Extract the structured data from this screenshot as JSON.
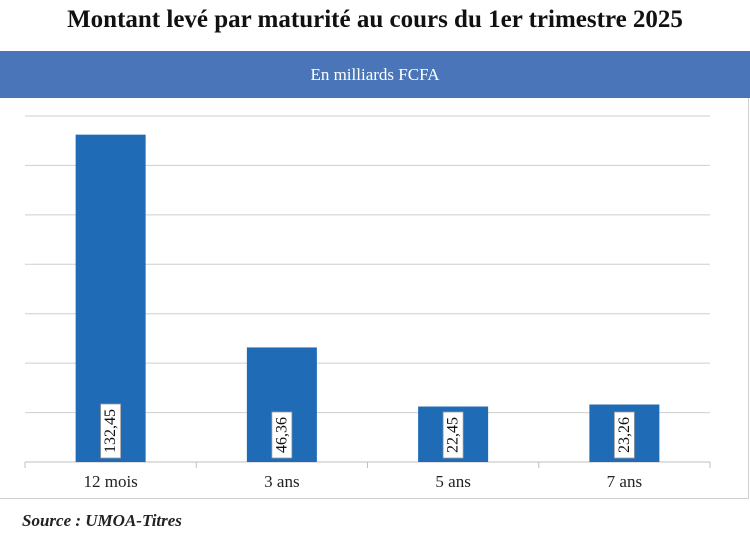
{
  "title": "Montant levé par maturité au cours du 1er trimestre 2025",
  "subtitle": "En milliards FCFA",
  "source": "Source : UMOA-Titres",
  "colors": {
    "banner": "#4a76b9",
    "bar": "#1f6bb5",
    "grid": "#cfcfcf"
  },
  "chart_data": {
    "type": "bar",
    "title": "Montant levé par maturité au cours du 1er trimestre 2025",
    "subtitle": "En milliards FCFA",
    "categories": [
      "12 mois",
      "3 ans",
      "5 ans",
      "7 ans"
    ],
    "values": [
      132.45,
      46.36,
      22.45,
      23.26
    ],
    "value_labels": [
      "132,45",
      "46,36",
      "22,45",
      "23,26"
    ],
    "ylim": [
      0,
      140
    ],
    "grid": true,
    "legend": "none"
  }
}
